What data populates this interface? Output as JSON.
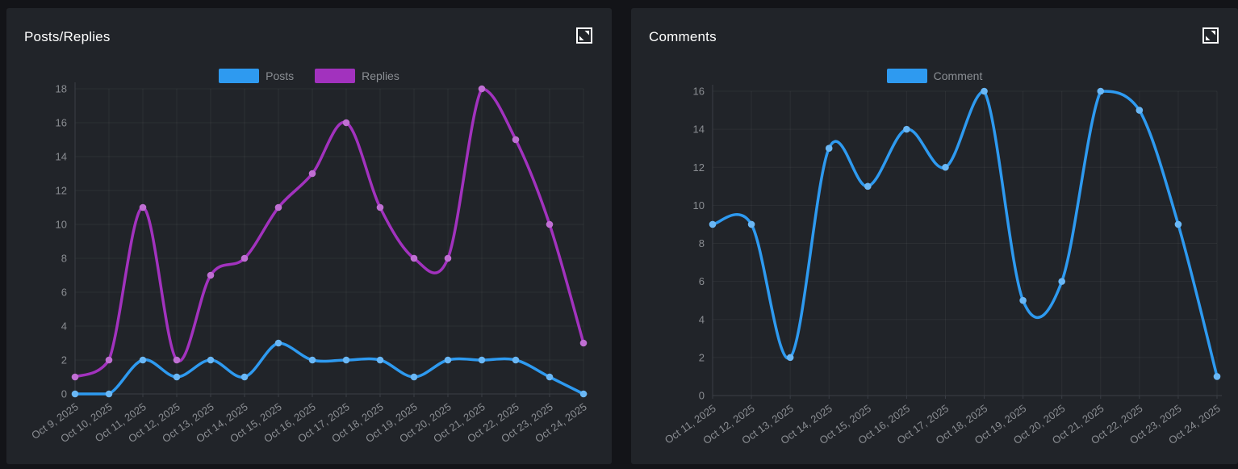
{
  "colors": {
    "page_background": "#131418",
    "panel_background": "#212429",
    "title_text": "#ffffff",
    "axis_label_text": "#8a8d92",
    "legend_text": "#8b8f94",
    "grid_line": "rgba(255,255,255,0.05)",
    "axis_line": "#3a3e45",
    "posts_blue": "#2e9af0",
    "replies_purple": "#a232be"
  },
  "panels": [
    {
      "expand_icon": "fullscreen-expand"
    },
    {
      "expand_icon": "fullscreen-expand"
    }
  ],
  "chart_data": [
    {
      "type": "line",
      "title": "Posts/Replies",
      "smooth": true,
      "grid": true,
      "legend_position": "top-center",
      "xlabel": "",
      "ylabel": "",
      "ylim": [
        0,
        18
      ],
      "ytick_step": 2,
      "categories": [
        "Oct 9, 2025",
        "Oct 10, 2025",
        "Oct 11, 2025",
        "Oct 12, 2025",
        "Oct 13, 2025",
        "Oct 14, 2025",
        "Oct 15, 2025",
        "Oct 16, 2025",
        "Oct 17, 2025",
        "Oct 18, 2025",
        "Oct 19, 2025",
        "Oct 20, 2025",
        "Oct 21, 2025",
        "Oct 22, 2025",
        "Oct 23, 2025",
        "Oct 24, 2025"
      ],
      "series": [
        {
          "name": "Posts",
          "color": "#2e9af0",
          "point_color": "#6ab7f5",
          "values": [
            0,
            0,
            2,
            1,
            2,
            1,
            3,
            2,
            2,
            2,
            1,
            2,
            2,
            2,
            1,
            0
          ]
        },
        {
          "name": "Replies",
          "color": "#a232be",
          "point_color": "#c06fd3",
          "values": [
            1,
            2,
            11,
            2,
            7,
            8,
            11,
            13,
            16,
            11,
            8,
            8,
            18,
            15,
            10,
            3
          ]
        }
      ]
    },
    {
      "type": "line",
      "title": "Comments",
      "smooth": true,
      "grid": true,
      "legend_position": "top-center",
      "xlabel": "",
      "ylabel": "",
      "ylim": [
        0,
        16
      ],
      "ytick_step": 2,
      "categories": [
        "Oct 11, 2025",
        "Oct 12, 2025",
        "Oct 13, 2025",
        "Oct 14, 2025",
        "Oct 15, 2025",
        "Oct 16, 2025",
        "Oct 17, 2025",
        "Oct 18, 2025",
        "Oct 19, 2025",
        "Oct 20, 2025",
        "Oct 21, 2025",
        "Oct 22, 2025",
        "Oct 23, 2025",
        "Oct 24, 2025"
      ],
      "series": [
        {
          "name": "Comment",
          "color": "#2e9af0",
          "point_color": "#6ab7f5",
          "values": [
            9,
            9,
            2,
            13,
            11,
            14,
            12,
            16,
            5,
            6,
            16,
            15,
            9,
            1
          ]
        }
      ]
    }
  ]
}
